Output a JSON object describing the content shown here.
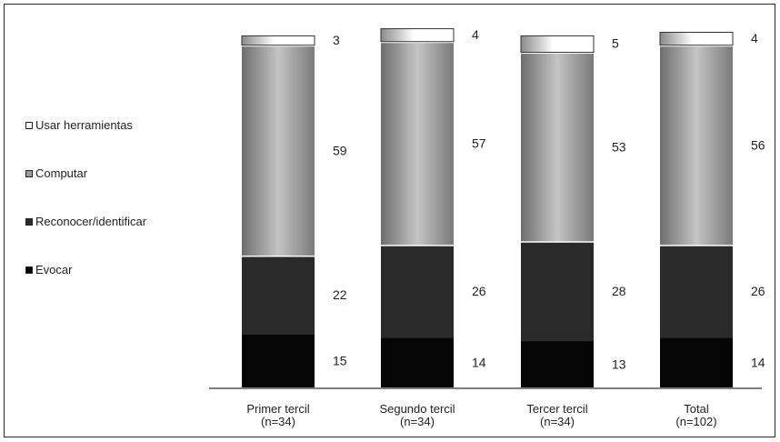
{
  "chart_data": {
    "type": "bar",
    "stacked": true,
    "categories": [
      [
        "Primer tercil",
        "(n=34)"
      ],
      [
        "Segundo tercil",
        "(n=34)"
      ],
      [
        "Tercer tercil",
        "(n=34)"
      ],
      [
        "Total",
        "(n=102)"
      ]
    ],
    "series": [
      {
        "name": "Evocar",
        "values": [
          15,
          14,
          13,
          14
        ],
        "color": "#050505"
      },
      {
        "name": "Reconocer/identificar",
        "values": [
          22,
          26,
          28,
          26
        ],
        "color": "#2a2a2a"
      },
      {
        "name": "Computar",
        "values": [
          59,
          57,
          53,
          56
        ],
        "color": "#9a9a9a"
      },
      {
        "name": "Usar herramientas",
        "values": [
          3,
          4,
          5,
          4
        ],
        "color": "#f4f4f4"
      }
    ],
    "legend_order": [
      "Usar herramientas",
      "Computar",
      "Reconocer/identificar",
      "Evocar"
    ],
    "legend_position": "left",
    "ylim": [
      0,
      100
    ],
    "grid": false
  }
}
